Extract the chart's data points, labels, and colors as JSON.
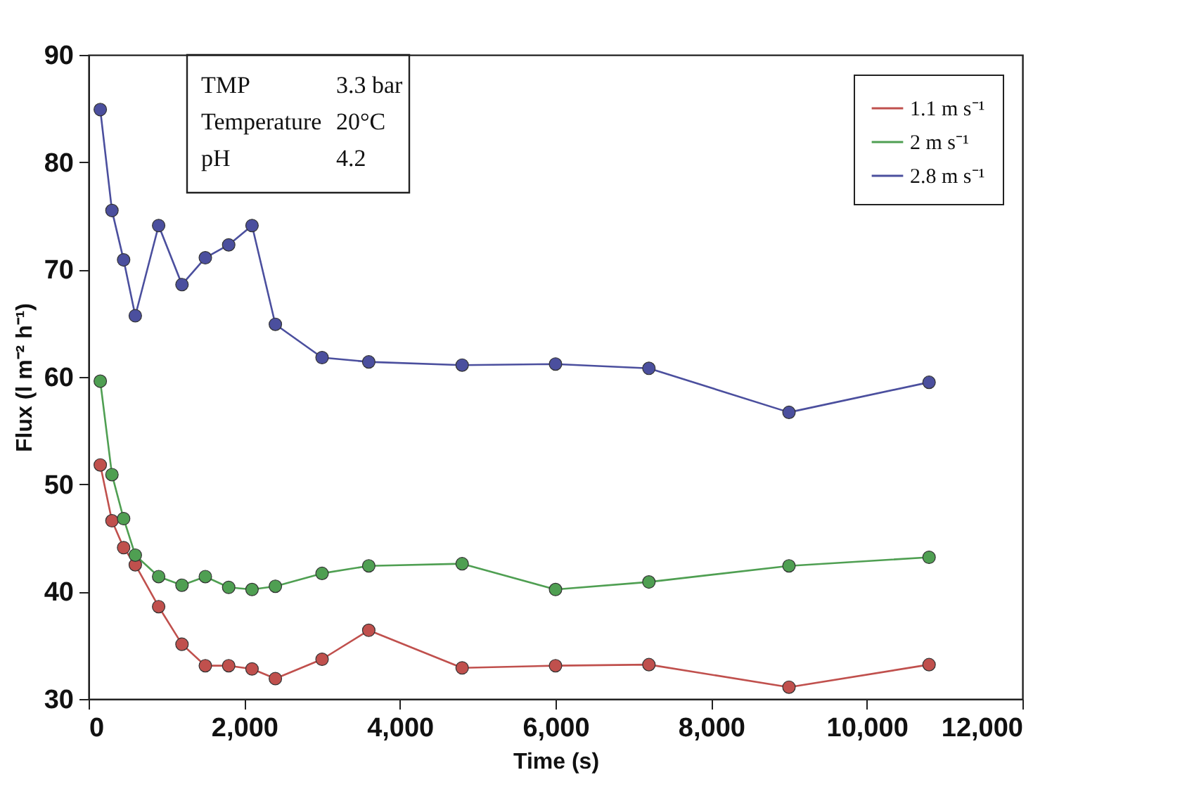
{
  "chart_data": {
    "type": "line",
    "xlabel": "Time (s)",
    "ylabel": "Flux (l m⁻² h⁻¹)",
    "xlim": [
      0,
      12000
    ],
    "xticks": [
      {
        "value": 0,
        "label": "0"
      },
      {
        "value": 2000,
        "label": "2,000"
      },
      {
        "value": 4000,
        "label": "4,000"
      },
      {
        "value": 6000,
        "label": "6,000"
      },
      {
        "value": 8000,
        "label": "8,000"
      },
      {
        "value": 10000,
        "label": "10,000"
      },
      {
        "value": 12000,
        "label": "12,000"
      }
    ],
    "ylim": [
      30,
      90
    ],
    "yticks": [
      30,
      40,
      50,
      60,
      70,
      80,
      90
    ],
    "x": [
      150,
      300,
      450,
      600,
      900,
      1200,
      1500,
      1800,
      2100,
      2400,
      3000,
      3600,
      4800,
      6000,
      7200,
      9000,
      10800
    ],
    "series": [
      {
        "name": "1.1 m s⁻¹",
        "color": "#c0504d",
        "values": [
          51.8,
          46.6,
          44.1,
          42.5,
          38.6,
          35.1,
          33.1,
          33.1,
          32.8,
          31.9,
          33.7,
          36.4,
          32.9,
          33.1,
          33.2,
          31.1,
          33.2
        ]
      },
      {
        "name": "2   m s⁻¹",
        "color": "#4f9f52",
        "values": [
          59.6,
          50.9,
          46.8,
          43.4,
          41.4,
          40.6,
          41.4,
          40.4,
          40.2,
          40.5,
          41.7,
          42.4,
          42.6,
          40.2,
          40.9,
          42.4,
          43.2
        ]
      },
      {
        "name": "2.8 m s⁻¹",
        "color": "#4b4f9e",
        "values": [
          84.9,
          75.5,
          70.9,
          65.7,
          74.1,
          68.6,
          71.1,
          72.3,
          74.1,
          64.9,
          61.8,
          61.4,
          61.1,
          61.2,
          60.8,
          56.7,
          59.5
        ]
      }
    ],
    "annotations": [
      "TMP",
      "3.3 bar",
      "Temperature",
      "20°C",
      "pH",
      "4.2"
    ],
    "grid": false,
    "legend": "top right",
    "marker": "circle",
    "line_style": "solid"
  }
}
